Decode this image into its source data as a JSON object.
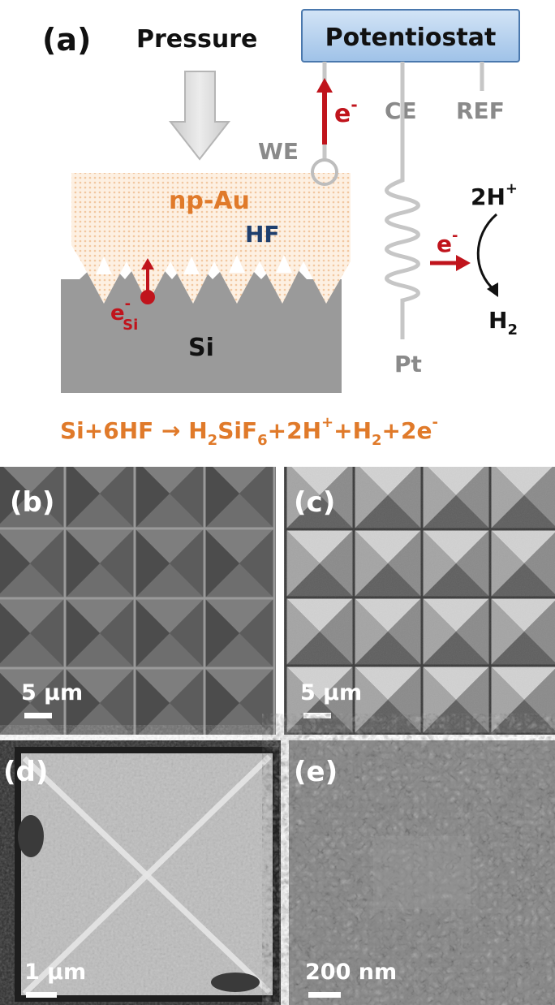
{
  "panel_a": {
    "letter": "(a)",
    "pressure_label": "Pressure",
    "potentiostat_label": "Potentiostat",
    "electron_label": "e",
    "electron_sup": "-",
    "we_label": "WE",
    "ce_label": "CE",
    "ref_label": "REF",
    "np_au_label": "np-Au",
    "hf_label": "HF",
    "esi_base": "e",
    "esi_sup": "-",
    "esi_sub": "Si",
    "si_label": "Si",
    "pt_label": "Pt",
    "proton_base": "2H",
    "proton_sup": "+",
    "h2_base": "H",
    "h2_sub": "2",
    "pt_electron_base": "e",
    "pt_electron_sup": "-"
  },
  "equation": {
    "p1": "Si+6HF ",
    "arrow": "→",
    "p2": " H",
    "s1": "2",
    "p3": "SiF",
    "s2": "6",
    "p4": "+2H",
    "sup1": "+",
    "p5": "+H",
    "s3": "2",
    "p6": "+2e",
    "sup2": "-"
  },
  "panels": {
    "b": {
      "letter": "(b)",
      "scale": "5 µm"
    },
    "c": {
      "letter": "(c)",
      "scale": "5 µm"
    },
    "d": {
      "letter": "(d)",
      "scale": "1 µm"
    },
    "e": {
      "letter": "(e)",
      "scale": "200 nm"
    }
  },
  "colors": {
    "orange": "#e07a2a",
    "dark_red": "#c0141c",
    "navy": "#1f3f6e",
    "grey_label": "#8a8a8a",
    "silicon": "#9a9a9a",
    "potentiostat_fill": "#b9d3ef"
  }
}
